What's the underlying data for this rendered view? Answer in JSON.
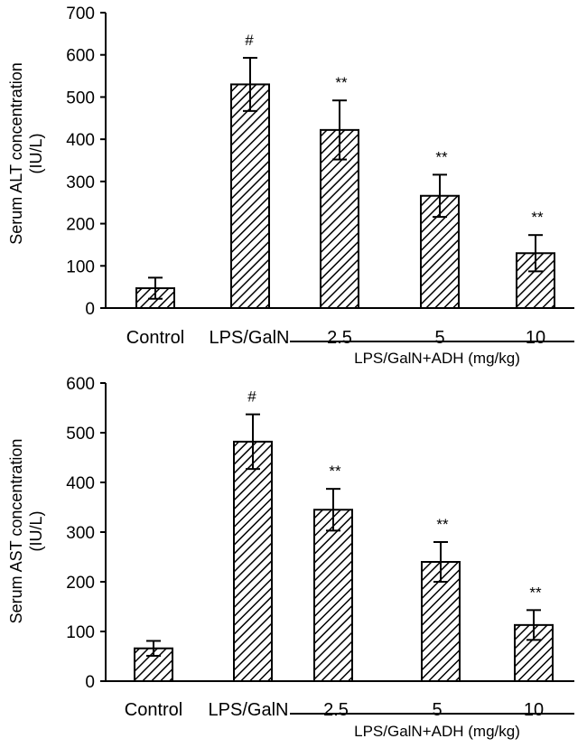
{
  "chart_data": [
    {
      "type": "bar",
      "ylabel_line1": "Serum ALT concentration",
      "ylabel_line2": "(IU/L)",
      "ylim": [
        0,
        700
      ],
      "yticks": [
        "0",
        "100",
        "200",
        "300",
        "400",
        "500",
        "600",
        "700"
      ],
      "categories": [
        "Control",
        "LPS/GalN",
        "2.5",
        "5",
        "10"
      ],
      "values": [
        47,
        530,
        422,
        266,
        130
      ],
      "errors": [
        25,
        63,
        70,
        50,
        43
      ],
      "significance": [
        "",
        "#",
        "**",
        "**",
        "**"
      ],
      "group_label": "LPS/GalN+ADH (mg/kg)",
      "grid": false,
      "pattern": "diagonal-hatch"
    },
    {
      "type": "bar",
      "ylabel_line1": "Serum AST concentration",
      "ylabel_line2": "(IU/L)",
      "ylim": [
        0,
        600
      ],
      "yticks": [
        "0",
        "100",
        "200",
        "300",
        "400",
        "500",
        "600"
      ],
      "categories": [
        "Control",
        "LPS/GalN",
        "2.5",
        "5",
        "10"
      ],
      "values": [
        66,
        482,
        345,
        240,
        113
      ],
      "errors": [
        15,
        55,
        42,
        40,
        30
      ],
      "significance": [
        "",
        "#",
        "**",
        "**",
        "**"
      ],
      "group_label": "LPS/GalN+ADH (mg/kg)",
      "grid": false,
      "pattern": "diagonal-hatch"
    }
  ]
}
